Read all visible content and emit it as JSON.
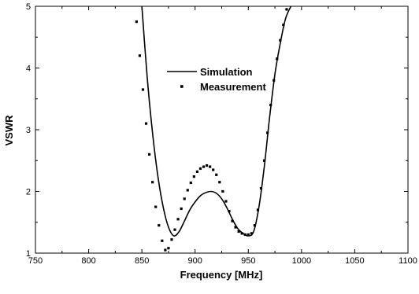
{
  "chart_data": {
    "type": "line",
    "title": "",
    "xlabel": "Frequency [MHz]",
    "ylabel": "VSWR",
    "xlim": [
      750,
      1100
    ],
    "ylim": [
      1,
      5
    ],
    "xticks": [
      "750",
      "800",
      "850",
      "900",
      "950",
      "1000",
      "1050",
      "1100"
    ],
    "yticks": [
      "1",
      "2",
      "3",
      "4",
      "5"
    ],
    "grid": false,
    "legend_position": "upper-middle",
    "series": [
      {
        "name": "Simulation",
        "style": "solid-line",
        "color": "#000000",
        "x": [
          850,
          855,
          860,
          865,
          870,
          875,
          880,
          885,
          890,
          895,
          900,
          905,
          910,
          915,
          920,
          925,
          930,
          935,
          940,
          945,
          950,
          955,
          960,
          965,
          970,
          975,
          980,
          985,
          990
        ],
        "y": [
          5.0,
          3.85,
          2.95,
          2.25,
          1.75,
          1.42,
          1.28,
          1.35,
          1.52,
          1.7,
          1.83,
          1.93,
          1.98,
          2.0,
          1.97,
          1.88,
          1.73,
          1.55,
          1.4,
          1.32,
          1.28,
          1.35,
          1.75,
          2.4,
          3.2,
          3.9,
          4.4,
          4.8,
          5.0
        ]
      },
      {
        "name": "Measurement",
        "style": "dotted-markers",
        "color": "#000000",
        "x": [
          845,
          848,
          851,
          854,
          857,
          860,
          863,
          866,
          869,
          872,
          875,
          878,
          881,
          884,
          887,
          890,
          893,
          896,
          899,
          902,
          905,
          908,
          911,
          914,
          917,
          920,
          923,
          926,
          929,
          932,
          935,
          938,
          941,
          944,
          947,
          950,
          953,
          956,
          959,
          962,
          965,
          968,
          971,
          974,
          977,
          980,
          983,
          986
        ],
        "y": [
          4.75,
          4.2,
          3.65,
          3.1,
          2.6,
          2.15,
          1.75,
          1.45,
          1.2,
          1.05,
          1.08,
          1.22,
          1.38,
          1.55,
          1.72,
          1.88,
          2.02,
          2.14,
          2.24,
          2.32,
          2.37,
          2.4,
          2.42,
          2.4,
          2.35,
          2.27,
          2.15,
          2.0,
          1.84,
          1.68,
          1.52,
          1.42,
          1.35,
          1.32,
          1.3,
          1.3,
          1.32,
          1.45,
          1.7,
          2.05,
          2.5,
          2.95,
          3.4,
          3.8,
          4.15,
          4.45,
          4.7,
          4.95
        ]
      }
    ]
  }
}
